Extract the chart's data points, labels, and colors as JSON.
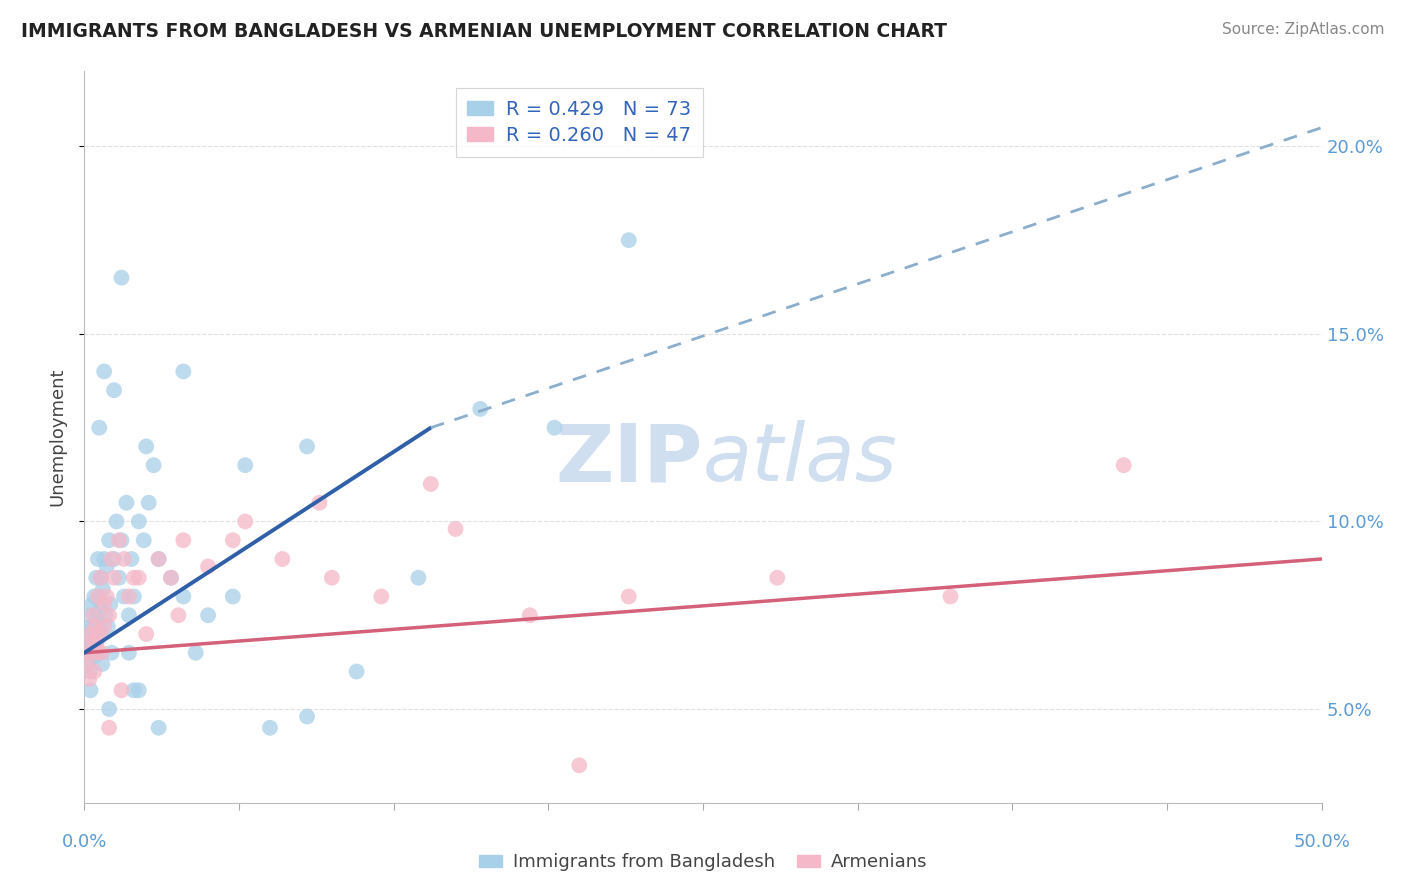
{
  "title": "IMMIGRANTS FROM BANGLADESH VS ARMENIAN UNEMPLOYMENT CORRELATION CHART",
  "source": "Source: ZipAtlas.com",
  "ylabel": "Unemployment",
  "xlim": [
    0,
    50
  ],
  "ylim": [
    2.5,
    22
  ],
  "ytick_positions": [
    5,
    10,
    15,
    20
  ],
  "ytick_labels": [
    "5.0%",
    "10.0%",
    "15.0%",
    "20.0%"
  ],
  "legend1_r": "R = 0.429",
  "legend1_n": "N = 73",
  "legend2_r": "R = 0.260",
  "legend2_n": "N = 47",
  "blue_scatter_color": "#A8D0E8",
  "blue_line_color": "#2F5FA8",
  "blue_line_dash_color": "#8AAECC",
  "pink_scatter_color": "#F5B8C8",
  "pink_line_color": "#D4607A",
  "watermark_color": "#D0DFF0",
  "bg_color": "#FFFFFF",
  "grid_color": "#DDDDDD",
  "blue_x": [
    0.1,
    0.12,
    0.15,
    0.18,
    0.2,
    0.22,
    0.25,
    0.28,
    0.3,
    0.32,
    0.35,
    0.38,
    0.4,
    0.42,
    0.45,
    0.48,
    0.5,
    0.52,
    0.55,
    0.58,
    0.6,
    0.62,
    0.65,
    0.68,
    0.7,
    0.72,
    0.75,
    0.8,
    0.85,
    0.9,
    0.95,
    1.0,
    1.05,
    1.1,
    1.2,
    1.3,
    1.4,
    1.5,
    1.6,
    1.7,
    1.8,
    1.9,
    2.0,
    2.2,
    2.4,
    2.6,
    2.8,
    3.0,
    3.5,
    4.0,
    4.5,
    5.0,
    6.0,
    7.5,
    9.0,
    11.0,
    13.5,
    16.0,
    19.0,
    22.0,
    1.2,
    2.5,
    4.0,
    6.5,
    9.0,
    2.0,
    3.0,
    1.5,
    0.8,
    0.6,
    1.0,
    1.8,
    2.2
  ],
  "blue_y": [
    6.5,
    7.0,
    6.2,
    6.8,
    7.5,
    6.0,
    5.5,
    7.2,
    6.8,
    7.8,
    6.5,
    7.2,
    8.0,
    6.4,
    7.0,
    8.5,
    6.8,
    7.5,
    9.0,
    7.2,
    8.0,
    6.5,
    7.8,
    8.5,
    7.0,
    6.2,
    8.2,
    9.0,
    7.5,
    8.8,
    7.2,
    9.5,
    7.8,
    6.5,
    9.0,
    10.0,
    8.5,
    9.5,
    8.0,
    10.5,
    7.5,
    9.0,
    8.0,
    10.0,
    9.5,
    10.5,
    11.5,
    9.0,
    8.5,
    8.0,
    6.5,
    7.5,
    8.0,
    4.5,
    4.8,
    6.0,
    8.5,
    13.0,
    12.5,
    17.5,
    13.5,
    12.0,
    14.0,
    11.5,
    12.0,
    5.5,
    4.5,
    16.5,
    14.0,
    12.5,
    5.0,
    6.5,
    5.5
  ],
  "pink_x": [
    0.1,
    0.15,
    0.2,
    0.25,
    0.3,
    0.35,
    0.4,
    0.45,
    0.5,
    0.55,
    0.6,
    0.65,
    0.7,
    0.8,
    0.9,
    1.0,
    1.1,
    1.2,
    1.4,
    1.6,
    1.8,
    2.0,
    2.5,
    3.0,
    3.5,
    4.0,
    5.0,
    6.0,
    8.0,
    10.0,
    12.0,
    15.0,
    18.0,
    22.0,
    28.0,
    35.0,
    42.0,
    1.5,
    2.2,
    3.8,
    6.5,
    9.5,
    14.0,
    20.0,
    0.5,
    0.8,
    1.0
  ],
  "pink_y": [
    6.2,
    6.5,
    5.8,
    7.0,
    6.8,
    7.5,
    6.0,
    7.2,
    6.5,
    8.0,
    7.0,
    8.5,
    6.5,
    7.8,
    8.0,
    7.5,
    9.0,
    8.5,
    9.5,
    9.0,
    8.0,
    8.5,
    7.0,
    9.0,
    8.5,
    9.5,
    8.8,
    9.5,
    9.0,
    8.5,
    8.0,
    9.8,
    7.5,
    8.0,
    8.5,
    8.0,
    11.5,
    5.5,
    8.5,
    7.5,
    10.0,
    10.5,
    11.0,
    3.5,
    6.8,
    7.2,
    4.5
  ],
  "blue_line_x0": 0,
  "blue_line_y0": 6.5,
  "blue_line_solid_x1": 14.0,
  "blue_line_solid_y1": 12.5,
  "blue_line_dash_x1": 50,
  "blue_line_dash_y1": 20.5,
  "pink_line_x0": 0,
  "pink_line_y0": 6.5,
  "pink_line_x1": 50,
  "pink_line_y1": 9.0
}
